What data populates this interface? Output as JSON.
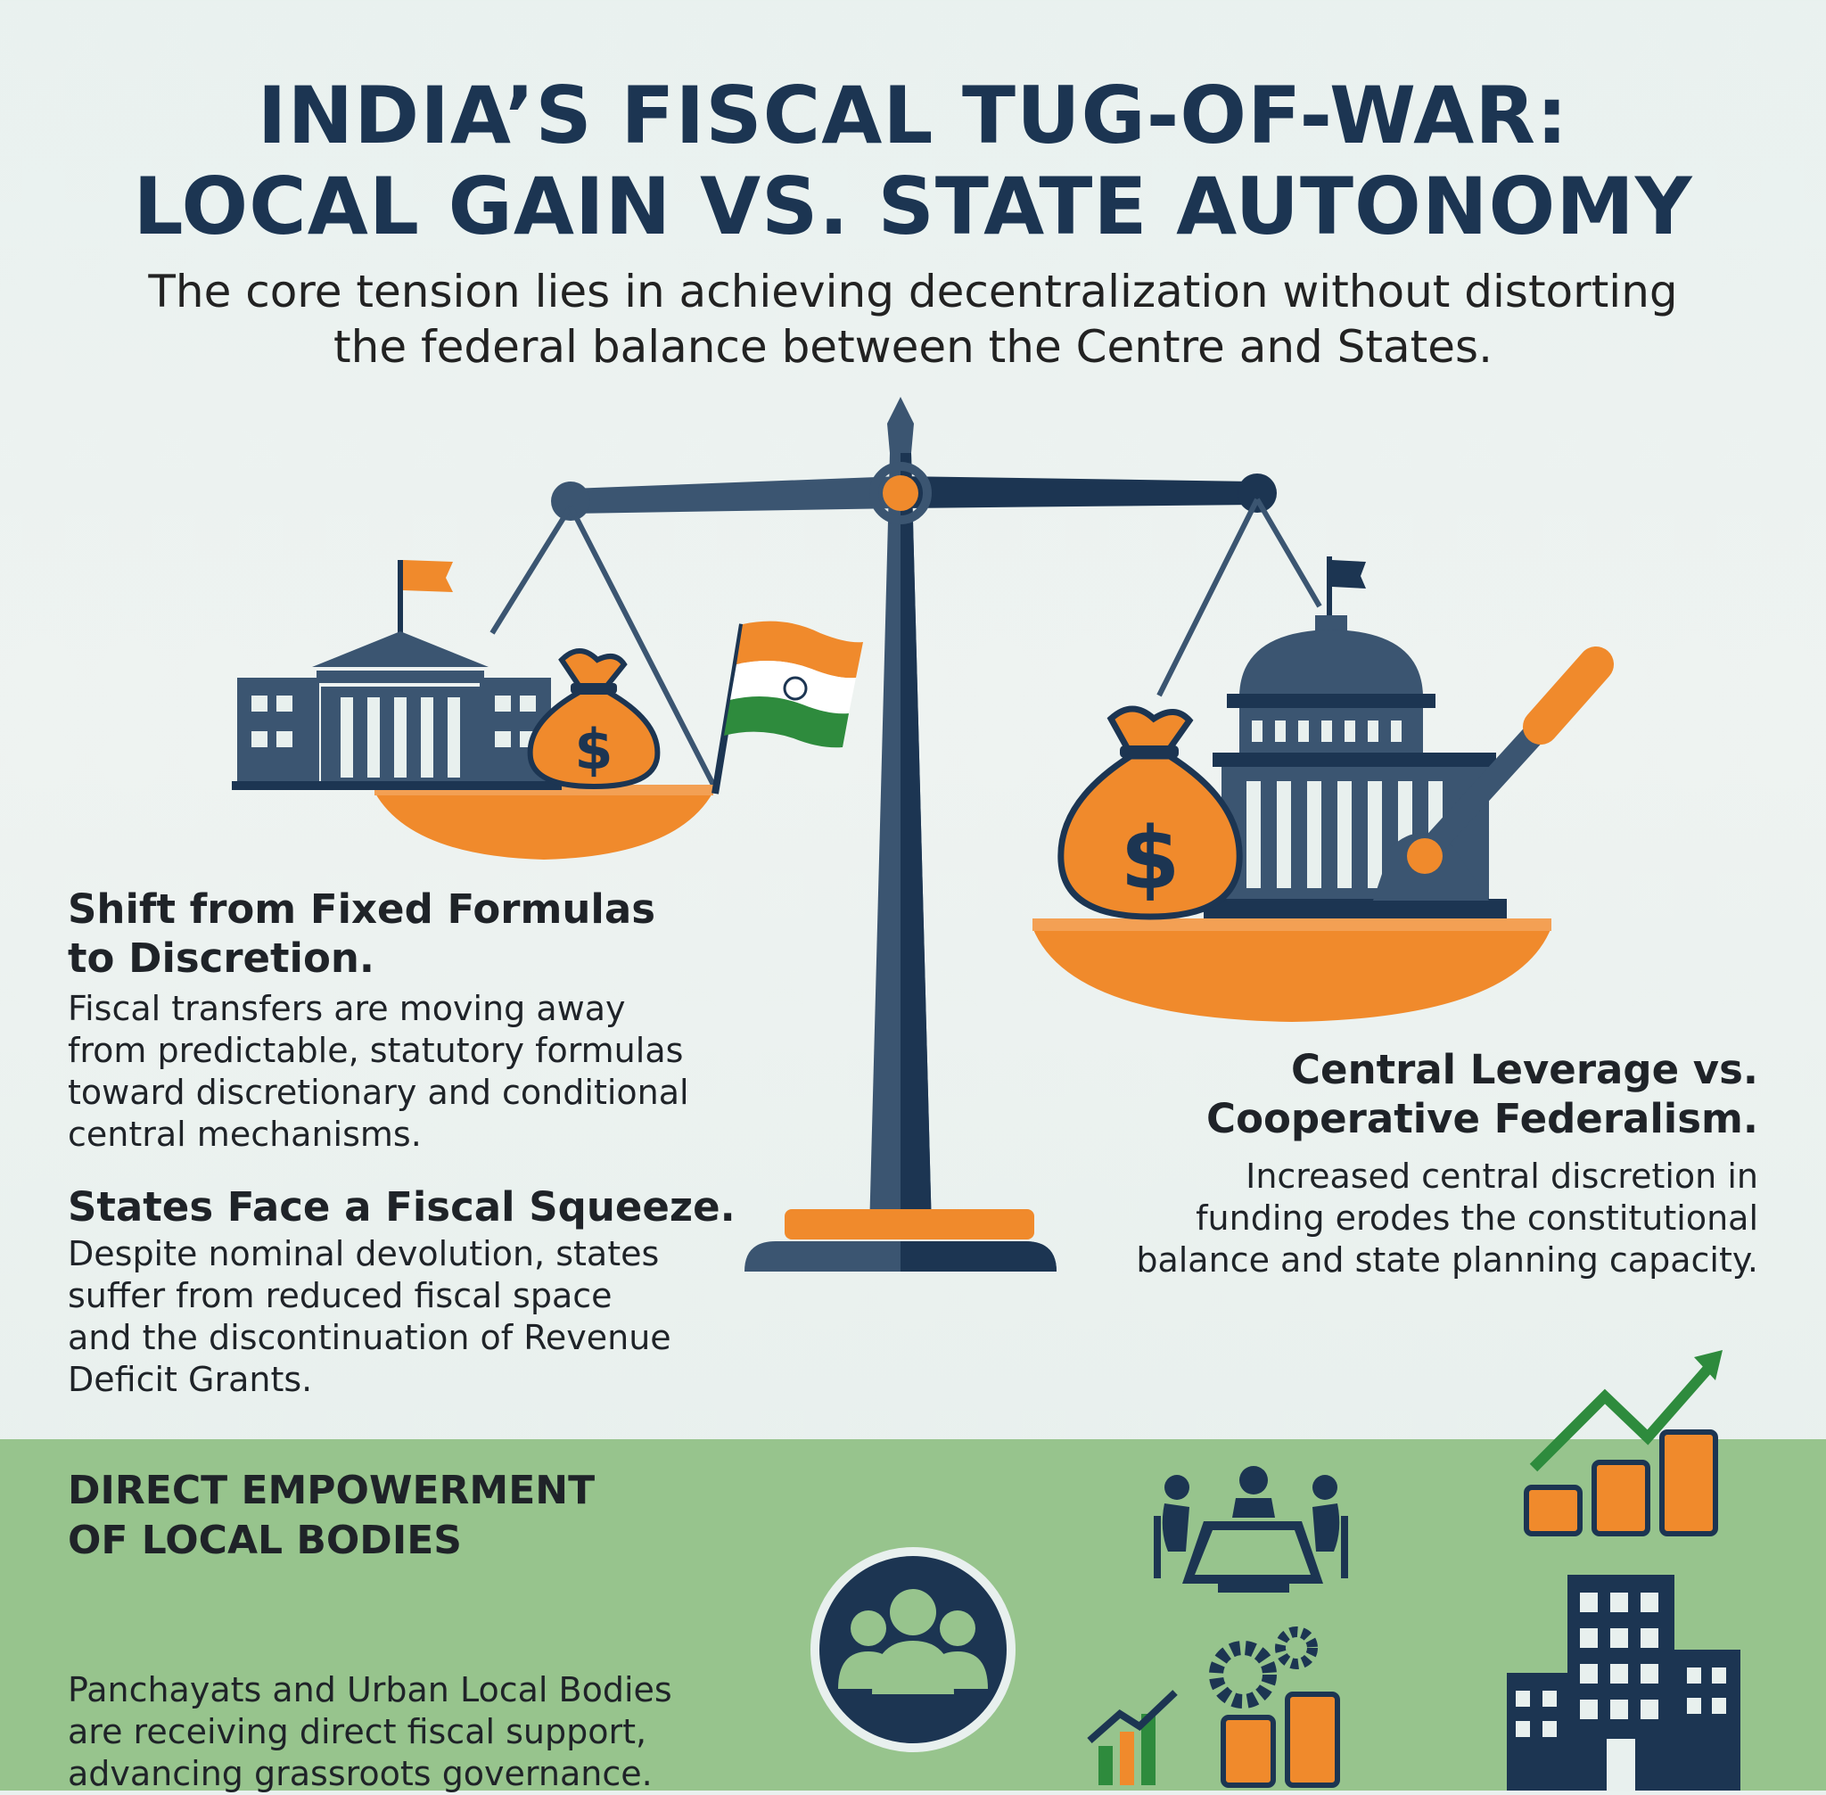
{
  "header": {
    "title_line1": "INDIA’S FISCAL TUG-OF-WAR:",
    "title_line2": "LOCAL GAIN VS. STATE AUTONOMY",
    "subtitle_line1": "The core tension lies in achieving decentralization without distorting",
    "subtitle_line2": "the federal balance between the Centre and States."
  },
  "left_panel": {
    "shift_heading_line1": "Shift from Fixed Formulas",
    "shift_heading_line2": "to Discretion.",
    "shift_body_lines": [
      "Fiscal transfers are moving away",
      "from predictable, statutory formulas",
      "toward discretionary and conditional",
      "central mechanisms."
    ],
    "squeeze_heading": "States Face a Fiscal Squeeze.",
    "squeeze_body_lines": [
      "Despite nominal devolution, states",
      "suffer from reduced fiscal space",
      "and the discontinuation of Revenue",
      "Deficit Grants."
    ]
  },
  "right_panel": {
    "leverage_heading_line1": "Central Leverage vs.",
    "leverage_heading_line2": "Cooperative Federalism.",
    "leverage_body_lines": [
      "Increased central discretion in",
      "funding erodes the constitutional",
      "balance and state planning capacity."
    ]
  },
  "bottom_band": {
    "heading_line1": "DIRECT EMPOWERMENT",
    "heading_line2": "OF LOCAL BODIES",
    "body_lines": [
      "Panchayats and Urban Local Bodies",
      "are receiving direct fiscal support,",
      "advancing grassroots governance."
    ]
  },
  "icons": {
    "dollar_symbol": "$",
    "colors": {
      "navy": "#1c3552",
      "slate": "#3b5571",
      "orange": "#f08a2c",
      "green": "#2e8b3d",
      "band": "#97c48d"
    }
  }
}
